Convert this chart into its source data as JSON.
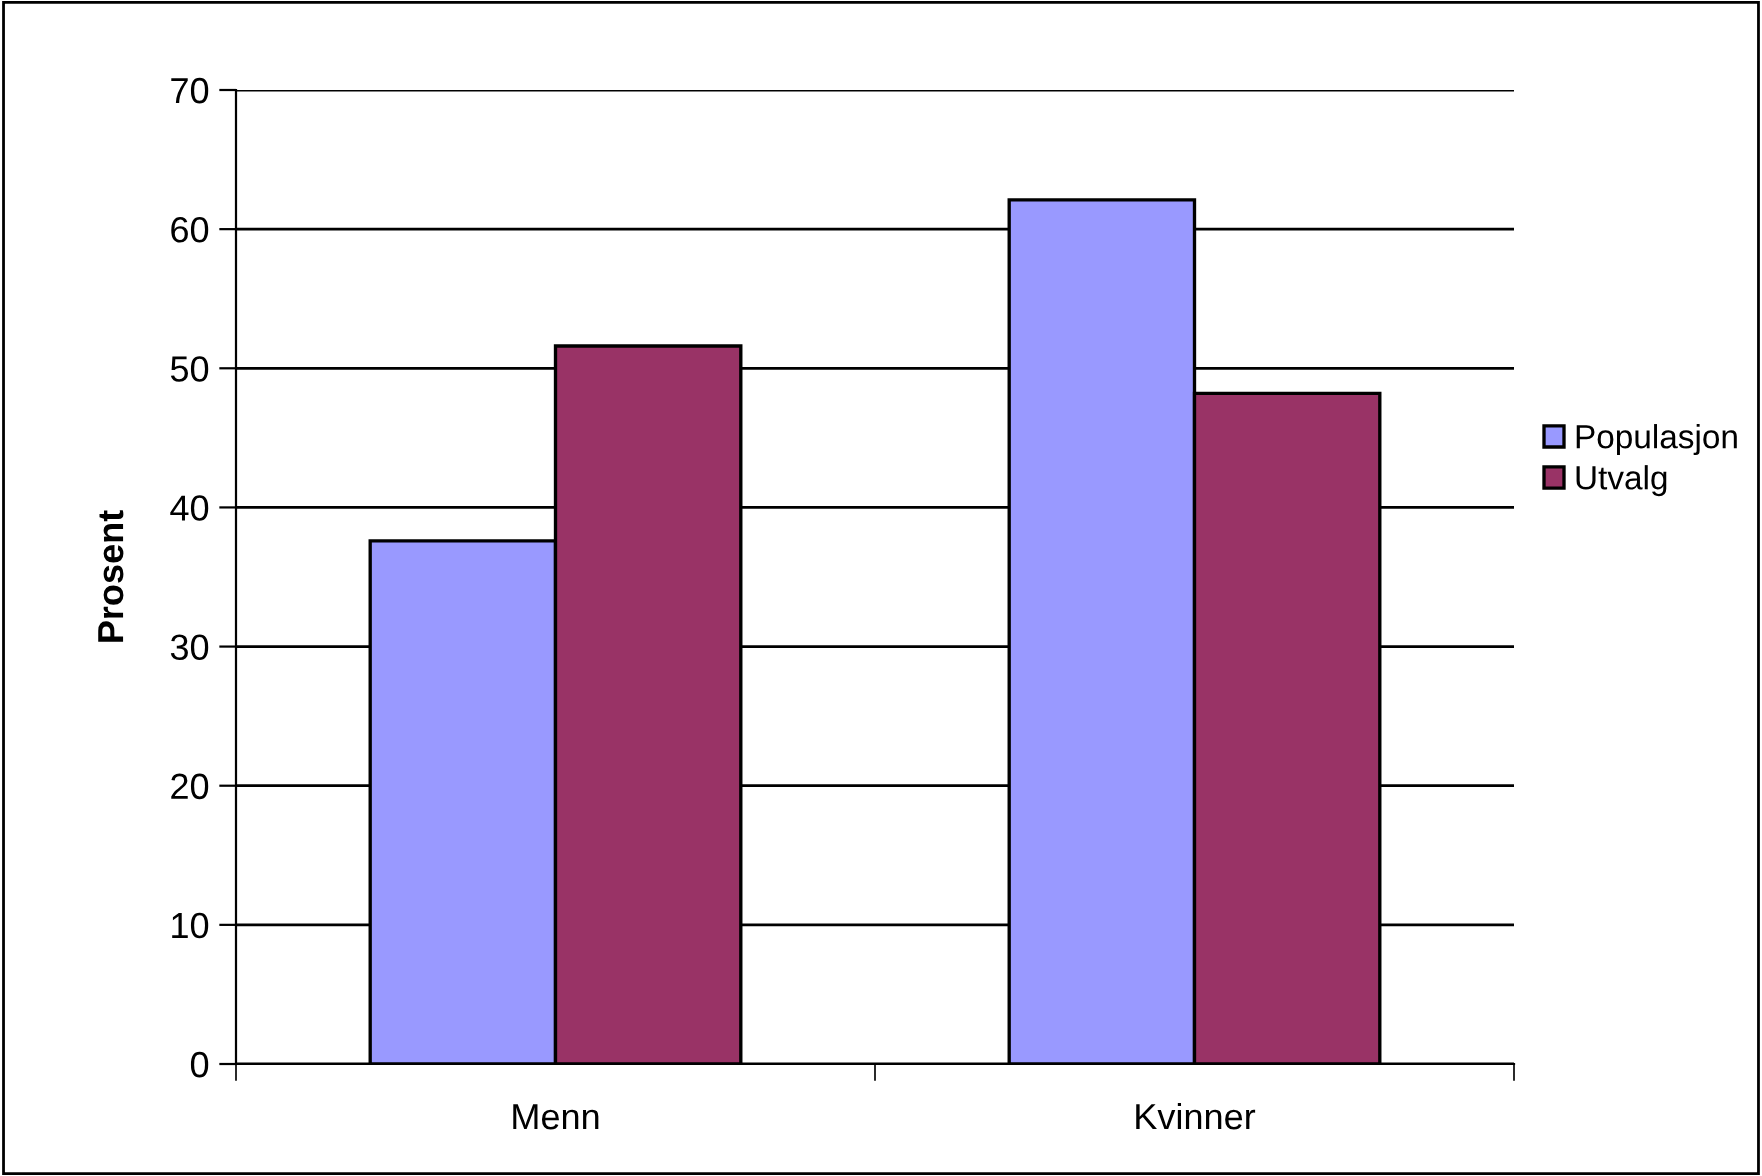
{
  "chart_data": {
    "type": "bar",
    "ylabel": "Prosent",
    "categories": [
      "Menn",
      "Kvinner"
    ],
    "series": [
      {
        "name": "Populasjon",
        "color": "#9999ff",
        "values": [
          37.6,
          62.1
        ]
      },
      {
        "name": "Utvalg",
        "color": "#993366",
        "values": [
          51.6,
          48.2
        ]
      }
    ],
    "ylim": [
      0,
      70
    ],
    "yticks": [
      0,
      10,
      20,
      30,
      40,
      50,
      60,
      70
    ],
    "grid": "y",
    "legend": "right"
  }
}
